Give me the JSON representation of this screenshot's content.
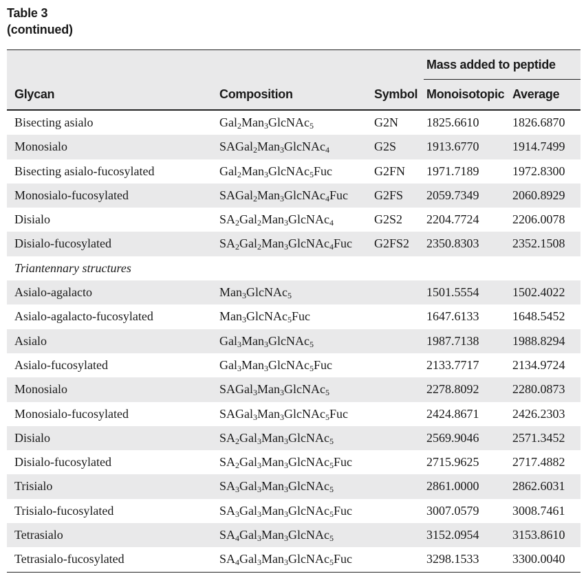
{
  "caption": {
    "title": "Table 3",
    "subtitle": "(continued)"
  },
  "table": {
    "group_header": "Mass added to peptide",
    "columns": [
      "Glycan",
      "Composition",
      "Symbol",
      "Monoisotopic",
      "Average"
    ],
    "rows": [
      {
        "glycan": "Bisecting asialo",
        "composition": "Gal_2Man_3GlcNAc_5",
        "symbol": "G2N",
        "mono": "1825.6610",
        "avg": "1826.6870"
      },
      {
        "glycan": "Monosialo",
        "composition": "SAGal_2Man_3GlcNAc_4",
        "symbol": "G2S",
        "mono": "1913.6770",
        "avg": "1914.7499"
      },
      {
        "glycan": "Bisecting asialo-fucosylated",
        "composition": "Gal_2Man_3GlcNAc_5Fuc",
        "symbol": "G2FN",
        "mono": "1971.7189",
        "avg": "1972.8300"
      },
      {
        "glycan": "Monosialo-fucosylated",
        "composition": "SAGal_2Man_3GlcNAc_4Fuc",
        "symbol": "G2FS",
        "mono": "2059.7349",
        "avg": "2060.8929"
      },
      {
        "glycan": "Disialo",
        "composition": "SA_2Gal_2Man_3GlcNAc_4",
        "symbol": "G2S2",
        "mono": "2204.7724",
        "avg": "2206.0078"
      },
      {
        "glycan": "Disialo-fucosylated",
        "composition": "SA_2Gal_2Man_3GlcNAc_4Fuc",
        "symbol": "G2FS2",
        "mono": "2350.8303",
        "avg": "2352.1508"
      },
      {
        "section": "Triantennary structures"
      },
      {
        "glycan": "Asialo-agalacto",
        "composition": "Man_3GlcNAc_5",
        "symbol": "",
        "mono": "1501.5554",
        "avg": "1502.4022"
      },
      {
        "glycan": "Asialo-agalacto-fucosylated",
        "composition": "Man_3GlcNAc_5Fuc",
        "symbol": "",
        "mono": "1647.6133",
        "avg": "1648.5452"
      },
      {
        "glycan": "Asialo",
        "composition": "Gal_3Man_3GlcNAc_5",
        "symbol": "",
        "mono": "1987.7138",
        "avg": "1988.8294"
      },
      {
        "glycan": "Asialo-fucosylated",
        "composition": "Gal_3Man_3GlcNAc_5Fuc",
        "symbol": "",
        "mono": "2133.7717",
        "avg": "2134.9724"
      },
      {
        "glycan": "Monosialo",
        "composition": "SAGal_3Man_3GlcNAc_5",
        "symbol": "",
        "mono": "2278.8092",
        "avg": "2280.0873"
      },
      {
        "glycan": "Monosialo-fucosylated",
        "composition": "SAGal_3Man_3GlcNAc_5Fuc",
        "symbol": "",
        "mono": "2424.8671",
        "avg": "2426.2303"
      },
      {
        "glycan": "Disialo",
        "composition": "SA_2Gal_3Man_3GlcNAc_5",
        "symbol": "",
        "mono": "2569.9046",
        "avg": "2571.3452"
      },
      {
        "glycan": "Disialo-fucosylated",
        "composition": "SA_2Gal_3Man_3GlcNAc_5Fuc",
        "symbol": "",
        "mono": "2715.9625",
        "avg": "2717.4882"
      },
      {
        "glycan": "Trisialo",
        "composition": "SA_3Gal_3Man_3GlcNAc_5",
        "symbol": "",
        "mono": "2861.0000",
        "avg": "2862.6031"
      },
      {
        "glycan": "Trisialo-fucosylated",
        "composition": "SA_3Gal_3Man_3GlcNAc_5Fuc",
        "symbol": "",
        "mono": "3007.0579",
        "avg": "3008.7461"
      },
      {
        "glycan": "Tetrasialo",
        "composition": "SA_4Gal_3Man_3GlcNAc_5",
        "symbol": "",
        "mono": "3152.0954",
        "avg": "3153.8610"
      },
      {
        "glycan": "Tetrasialo-fucosylated",
        "composition": "SA_4Gal_3Man_3GlcNAc_5Fuc",
        "symbol": "",
        "mono": "3298.1533",
        "avg": "3300.0040"
      }
    ]
  }
}
